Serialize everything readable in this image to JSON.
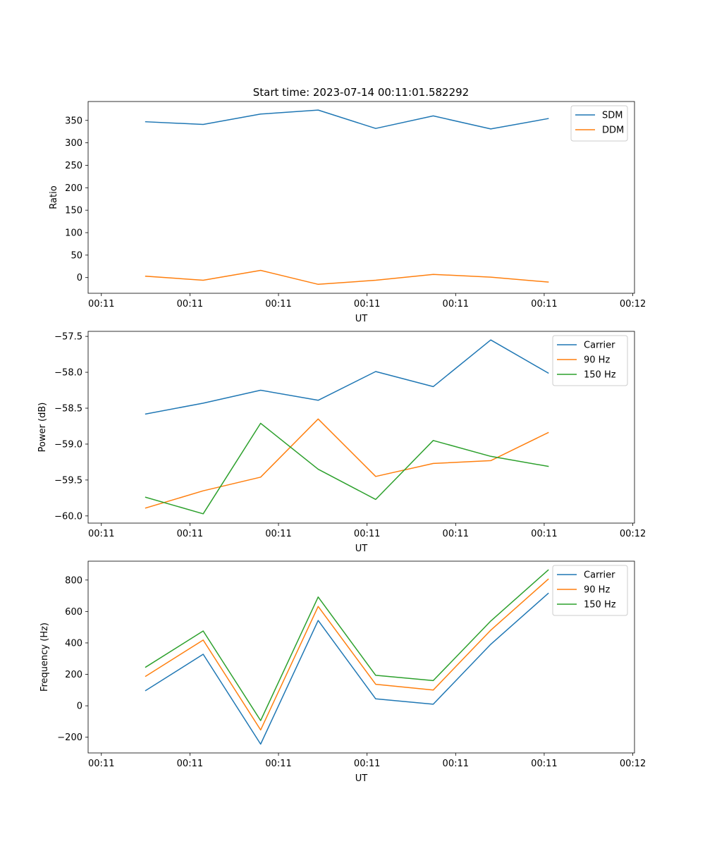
{
  "figure": {
    "title": "Start time: 2023-07-14 00:11:01.582292"
  },
  "chart_data": [
    {
      "type": "line",
      "title": "Start time: 2023-07-14 00:11:01.582292",
      "xlabel": "UT",
      "ylabel": "Ratio",
      "x": [
        1,
        2,
        3,
        4,
        5,
        6,
        7,
        8
      ],
      "x_tick_values": [
        0.23,
        1.77,
        3.31,
        4.85,
        6.39,
        7.93,
        9.47
      ],
      "x_tick_labels": [
        "00:11",
        "00:11",
        "00:11",
        "00:11",
        "00:11",
        "00:11",
        "00:12"
      ],
      "xlim": [
        0,
        9.5
      ],
      "ylim": [
        -35,
        392
      ],
      "y_ticks": [
        0,
        50,
        100,
        150,
        200,
        250,
        300,
        350
      ],
      "y_tick_labels": [
        "0",
        "50",
        "100",
        "150",
        "200",
        "250",
        "300",
        "350"
      ],
      "legend": "top-right",
      "grid": false,
      "series": [
        {
          "name": "SDM",
          "color": "#1f77b4",
          "values": [
            347,
            341,
            364,
            373,
            332,
            360,
            331,
            354
          ]
        },
        {
          "name": "DDM",
          "color": "#ff7f0e",
          "values": [
            3,
            -6,
            16,
            -15,
            -6,
            7,
            1,
            -10
          ]
        }
      ]
    },
    {
      "type": "line",
      "title": "",
      "xlabel": "UT",
      "ylabel": "Power (dB)",
      "x": [
        1,
        2,
        3,
        4,
        5,
        6,
        7,
        8
      ],
      "x_tick_values": [
        0.23,
        1.77,
        3.31,
        4.85,
        6.39,
        7.93,
        9.47
      ],
      "x_tick_labels": [
        "00:11",
        "00:11",
        "00:11",
        "00:11",
        "00:11",
        "00:11",
        "00:12"
      ],
      "xlim": [
        0,
        9.5
      ],
      "ylim": [
        -60.1,
        -57.43
      ],
      "y_ticks": [
        -60.0,
        -59.5,
        -59.0,
        -58.5,
        -58.0,
        -57.5
      ],
      "y_tick_labels": [
        "−60.0",
        "−59.5",
        "−59.0",
        "−58.5",
        "−58.0",
        "−57.5"
      ],
      "legend": "top-right",
      "grid": false,
      "series": [
        {
          "name": "Carrier",
          "color": "#1f77b4",
          "values": [
            -58.58,
            -58.43,
            -58.25,
            -58.39,
            -57.99,
            -58.2,
            -57.55,
            -58.01
          ]
        },
        {
          "name": "90 Hz",
          "color": "#ff7f0e",
          "values": [
            -59.89,
            -59.65,
            -59.46,
            -58.65,
            -59.45,
            -59.27,
            -59.23,
            -58.84
          ]
        },
        {
          "name": "150 Hz",
          "color": "#2ca02c",
          "values": [
            -59.74,
            -59.97,
            -58.71,
            -59.35,
            -59.77,
            -58.95,
            -59.17,
            -59.31
          ]
        }
      ]
    },
    {
      "type": "line",
      "title": "",
      "xlabel": "UT",
      "ylabel": "Frequency (Hz)",
      "x": [
        1,
        2,
        3,
        4,
        5,
        6,
        7,
        8
      ],
      "x_tick_values": [
        0.23,
        1.77,
        3.31,
        4.85,
        6.39,
        7.93,
        9.47
      ],
      "x_tick_labels": [
        "00:11",
        "00:11",
        "00:11",
        "00:11",
        "00:11",
        "00:11",
        "00:12"
      ],
      "xlim": [
        0,
        9.5
      ],
      "ylim": [
        -300,
        920
      ],
      "y_ticks": [
        -200,
        0,
        200,
        400,
        600,
        800
      ],
      "y_tick_labels": [
        "−200",
        "0",
        "200",
        "400",
        "600",
        "800"
      ],
      "legend": "top-right",
      "grid": false,
      "series": [
        {
          "name": "Carrier",
          "color": "#1f77b4",
          "values": [
            97,
            328,
            -244,
            543,
            44,
            10,
            391,
            715
          ]
        },
        {
          "name": "90 Hz",
          "color": "#ff7f0e",
          "values": [
            188,
            418,
            -154,
            632,
            137,
            100,
            481,
            805
          ]
        },
        {
          "name": "150 Hz",
          "color": "#2ca02c",
          "values": [
            246,
            476,
            -94,
            692,
            194,
            160,
            539,
            864
          ]
        }
      ]
    }
  ]
}
